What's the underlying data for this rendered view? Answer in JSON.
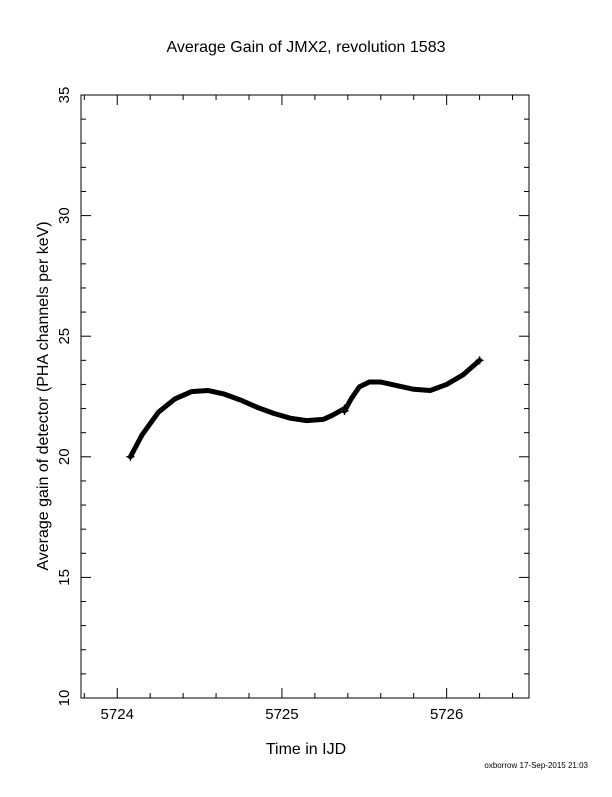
{
  "chart_data": {
    "type": "line",
    "title": "Average Gain of JMX2, revolution 1583",
    "xlabel": "Time in IJD",
    "ylabel": "Average gain of detector (PHA channels per keV)",
    "xlim": [
      5723.78,
      5726.5
    ],
    "ylim": [
      10,
      35
    ],
    "xticks": [
      5724,
      5725,
      5726
    ],
    "yticks": [
      10,
      15,
      20,
      25,
      30,
      35
    ],
    "grid": false,
    "series": [
      {
        "segments": [
          {
            "x": [
              5724.08,
              5724.15,
              5724.25,
              5724.35,
              5724.45,
              5724.55,
              5724.65,
              5724.75,
              5724.85,
              5724.95,
              5725.05,
              5725.15,
              5725.25,
              5725.3,
              5725.38
            ],
            "y": [
              20.0,
              20.9,
              21.85,
              22.4,
              22.7,
              22.75,
              22.6,
              22.35,
              22.05,
              21.8,
              21.6,
              21.5,
              21.55,
              21.7,
              22.0
            ]
          },
          {
            "x": [
              5725.38,
              5725.42,
              5725.47,
              5725.53,
              5725.6,
              5725.7,
              5725.8,
              5725.9,
              5726.0,
              5726.1,
              5726.2
            ],
            "y": [
              21.9,
              22.4,
              22.9,
              23.1,
              23.1,
              22.95,
              22.8,
              22.75,
              23.0,
              23.4,
              24.0
            ]
          }
        ]
      }
    ],
    "footer": "oxborrow 17-Sep-2015 21:03"
  }
}
